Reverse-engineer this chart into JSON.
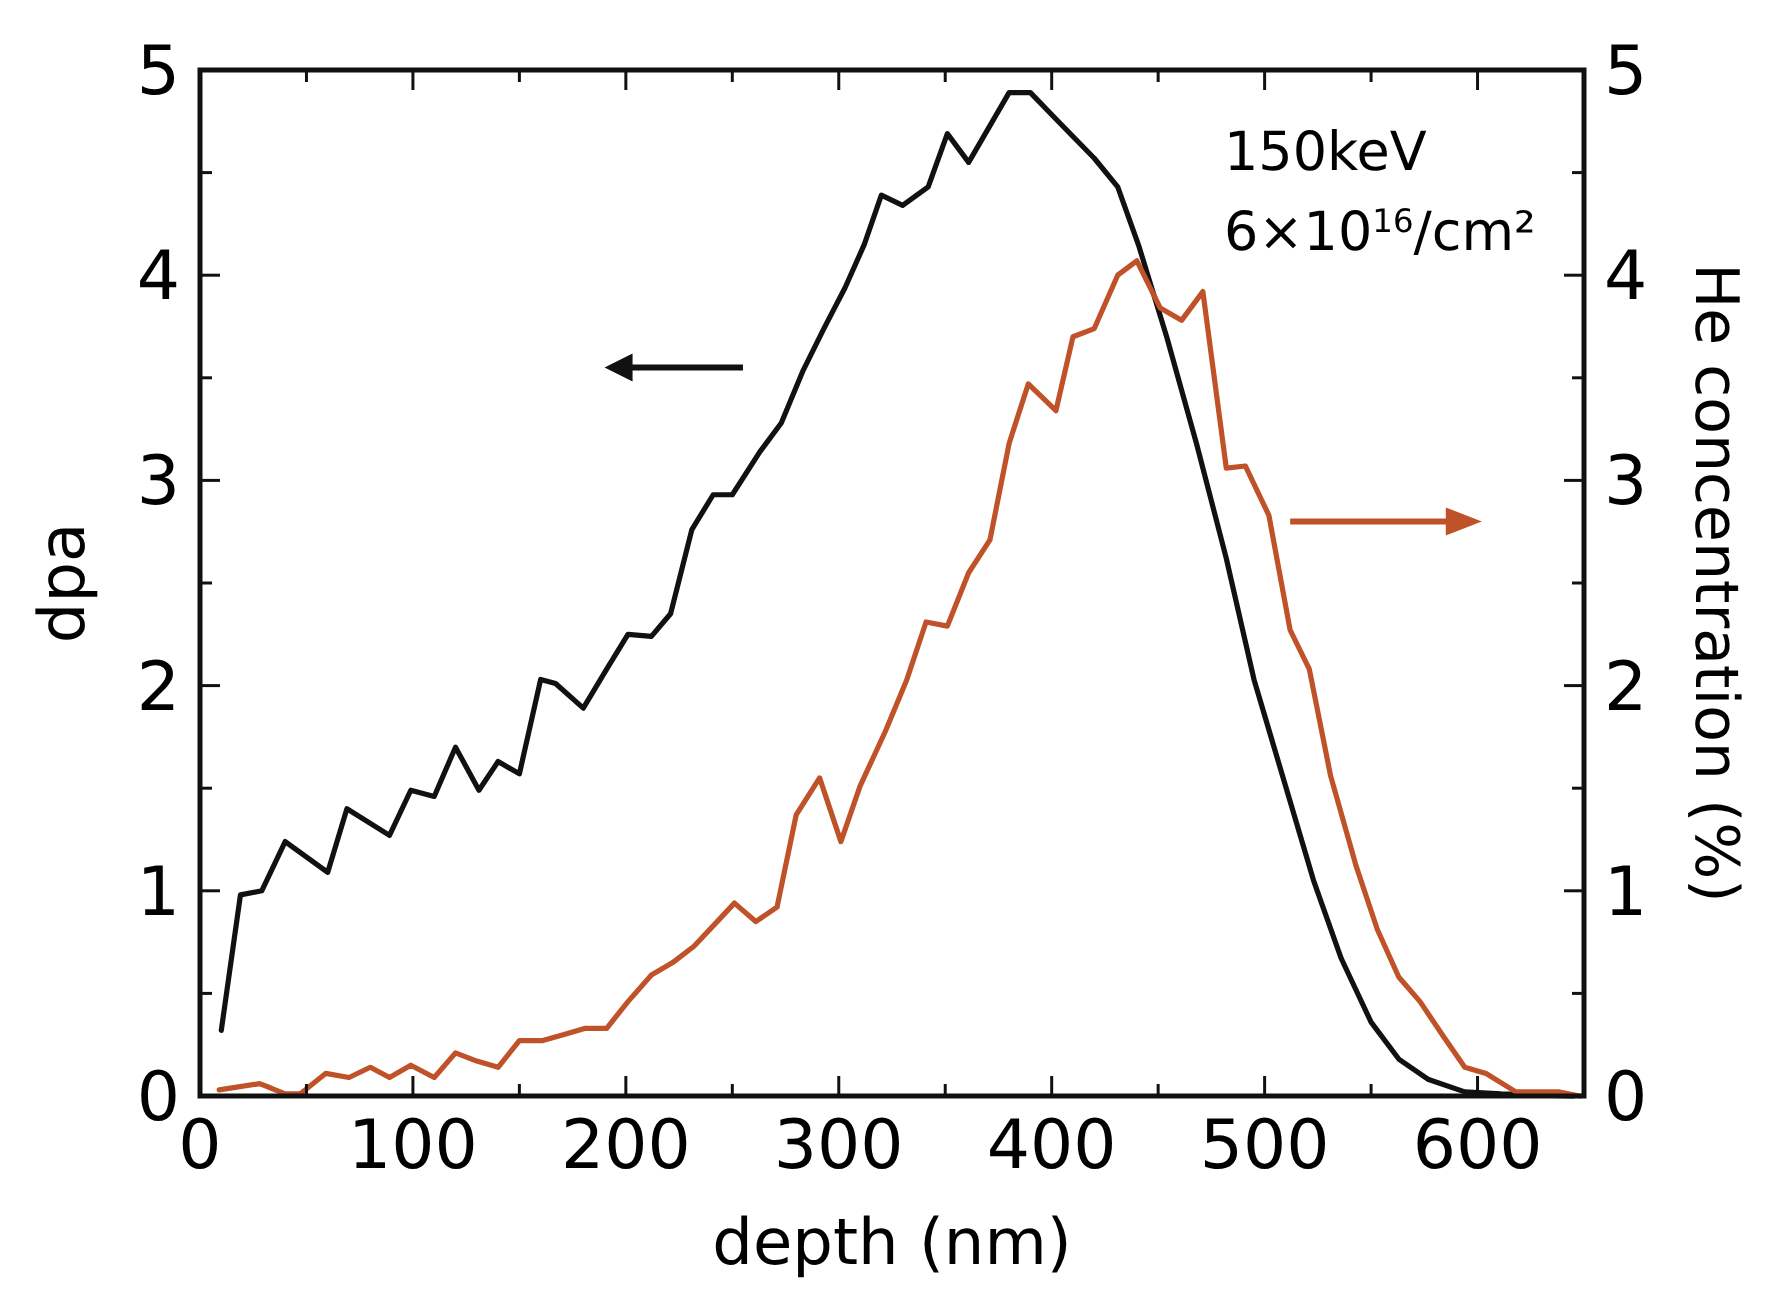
{
  "chart_data": {
    "type": "line",
    "xlabel": "depth (nm)",
    "ylabel": "dpa",
    "y2label": "He concentration (%)",
    "annotations": [
      "150keV",
      "6×10$^{16}$/cm²"
    ],
    "xlim": [
      0,
      650
    ],
    "ylim": [
      0,
      5
    ],
    "y2lim": [
      0,
      5
    ],
    "xticks": [
      0,
      {
        "value": 50,
        "label": null
      },
      100,
      {
        "value": 150,
        "label": null
      },
      200,
      {
        "value": 250,
        "label": null
      },
      300,
      {
        "value": 350,
        "label": null
      },
      400,
      {
        "value": 450,
        "label": null
      },
      500,
      {
        "value": 550,
        "label": null
      },
      600
    ],
    "yticks": [
      0,
      {
        "value": 0.5,
        "label": null
      },
      1,
      {
        "value": 1.5,
        "label": null
      },
      2,
      {
        "value": 2.5,
        "label": null
      },
      3,
      {
        "value": 3.5,
        "label": null
      },
      4,
      {
        "value": 4.5,
        "label": null
      },
      5
    ],
    "y2ticks": [
      0,
      {
        "value": 0.5,
        "label": null
      },
      1,
      {
        "value": 1.5,
        "label": null
      },
      2,
      {
        "value": 2.5,
        "label": null
      },
      3,
      {
        "value": 3.5,
        "label": null
      },
      4,
      {
        "value": 4.5,
        "label": null
      },
      5
    ],
    "marker": "none",
    "line_style": "solid",
    "series": [
      {
        "color": "#111111",
        "x": [
          10,
          19,
          29,
          40,
          60,
          69,
          89,
          99,
          110,
          120,
          131,
          140,
          150,
          160,
          167,
          180,
          191,
          201,
          212,
          221,
          231,
          241,
          250,
          263,
          273,
          283,
          293,
          303,
          312,
          320,
          330,
          342,
          351,
          361,
          380,
          390,
          403,
          420,
          431,
          441,
          454,
          468,
          482,
          495,
          509,
          523,
          536,
          550,
          563,
          577,
          594,
          611,
          645
        ],
        "values": [
          0.32,
          0.98,
          1.0,
          1.24,
          1.09,
          1.4,
          1.27,
          1.49,
          1.46,
          1.7,
          1.49,
          1.63,
          1.57,
          2.03,
          2.01,
          1.89,
          2.08,
          2.25,
          2.24,
          2.35,
          2.76,
          2.93,
          2.93,
          3.14,
          3.28,
          3.53,
          3.74,
          3.94,
          4.15,
          4.39,
          4.34,
          4.43,
          4.69,
          4.55,
          4.89,
          4.89,
          4.75,
          4.57,
          4.43,
          4.14,
          3.7,
          3.18,
          2.62,
          2.03,
          1.54,
          1.05,
          0.67,
          0.36,
          0.18,
          0.08,
          0.02,
          0.01,
          0
        ]
      },
      {
        "color": "#c0522a",
        "axis": "y2",
        "x": [
          9,
          28,
          33,
          40,
          47,
          59,
          70,
          80,
          89,
          99,
          110,
          120,
          130,
          140,
          150,
          161,
          171,
          181,
          191,
          201,
          212,
          222,
          232,
          242,
          251,
          261,
          271,
          280,
          291,
          301,
          310,
          322,
          332,
          341,
          351,
          361,
          371,
          380,
          389,
          402,
          410,
          420,
          431,
          440,
          451,
          461,
          471,
          482,
          491,
          502,
          512,
          521,
          531,
          543,
          553,
          563,
          573,
          584,
          594,
          604,
          618,
          638,
          648
        ],
        "values": [
          0.03,
          0.06,
          0.04,
          0.01,
          0.01,
          0.11,
          0.09,
          0.14,
          0.09,
          0.15,
          0.09,
          0.21,
          0.17,
          0.14,
          0.27,
          0.27,
          0.3,
          0.33,
          0.33,
          0.46,
          0.59,
          0.65,
          0.73,
          0.84,
          0.94,
          0.85,
          0.92,
          1.37,
          1.55,
          1.24,
          1.51,
          1.78,
          2.03,
          2.31,
          2.29,
          2.55,
          2.71,
          3.18,
          3.47,
          3.34,
          3.7,
          3.74,
          4.0,
          4.07,
          3.84,
          3.78,
          3.92,
          3.06,
          3.07,
          2.83,
          2.27,
          2.08,
          1.56,
          1.12,
          0.81,
          0.58,
          0.46,
          0.29,
          0.14,
          0.11,
          0.02,
          0.02,
          0
        ]
      }
    ]
  }
}
